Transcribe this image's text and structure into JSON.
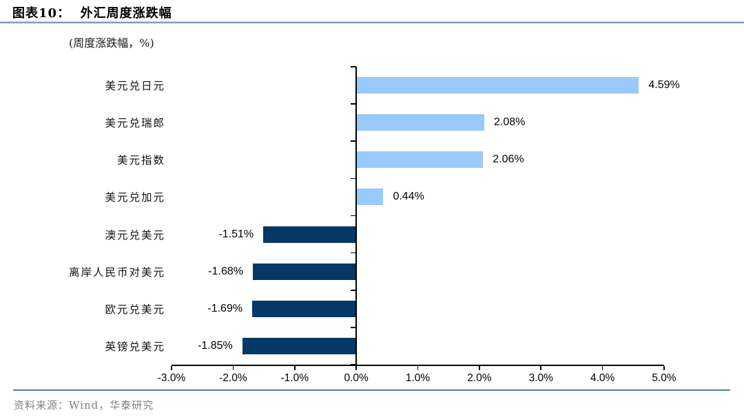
{
  "header": {
    "title": "图表10：  外汇周度涨跌幅"
  },
  "chart_data": {
    "type": "bar",
    "orientation": "horizontal",
    "subtitle": "(周度涨跌幅，%)",
    "categories": [
      "美元兑日元",
      "美元兑瑞郎",
      "美元指数",
      "美元兑加元",
      "澳元兑美元",
      "离岸人民币对美元",
      "欧元兑美元",
      "英镑兑美元"
    ],
    "values": [
      4.59,
      2.08,
      2.06,
      0.44,
      -1.51,
      -1.68,
      -1.69,
      -1.85
    ],
    "value_labels": [
      "4.59%",
      "2.08%",
      "2.06%",
      "0.44%",
      "-1.51%",
      "-1.68%",
      "-1.69%",
      "-1.85%"
    ],
    "x_ticks": [
      "-3.0%",
      "-2.0%",
      "-1.0%",
      "0.0%",
      "1.0%",
      "2.0%",
      "3.0%",
      "4.0%",
      "5.0%"
    ],
    "xlim": [
      -3,
      5
    ],
    "grid": "off",
    "legend": "none",
    "colors": {
      "positive": "#9AC9FB",
      "negative": "#053866"
    }
  },
  "footer": {
    "source": "资料来源：Wind，华泰研究"
  }
}
